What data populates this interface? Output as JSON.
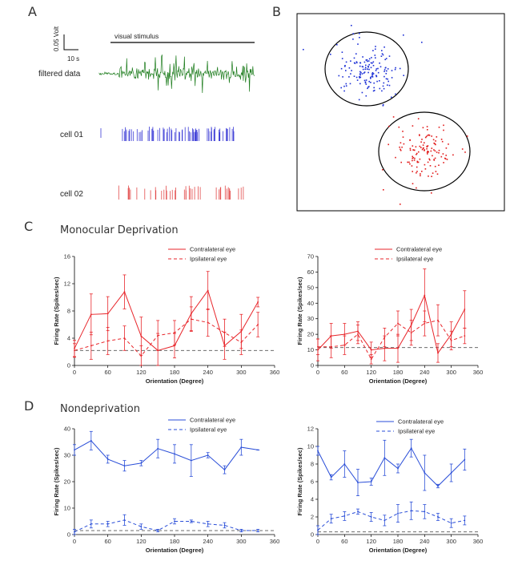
{
  "panels": {
    "A": {
      "letter": "A",
      "scalebar_v": "0.05 Volt",
      "scalebar_h": "10 s",
      "stim_label": "visual stimulus",
      "row_filtered": "filtered data",
      "row_cell1": "cell 01",
      "row_cell2": "cell 02"
    },
    "B": {
      "letter": "B"
    },
    "C": {
      "letter": "C",
      "title": "Monocular Deprivation"
    },
    "D": {
      "letter": "D",
      "title": "Nondeprivation"
    }
  },
  "colors": {
    "red": "#e8262b",
    "blue": "#2a4ed8",
    "green": "#1e7d1e",
    "cell1": "#3b3bd6",
    "cell2": "#e24a4a",
    "dots_blue": "#1b2fd6",
    "dots_red": "#e21b1b"
  },
  "chart_data": [
    {
      "id": "C-left",
      "type": "line",
      "title": "",
      "xlabel": "Orientation (Degree)",
      "ylabel": "Firing Rate (Spikes/sec)",
      "xlim": [
        0,
        360
      ],
      "ylim": [
        0,
        16
      ],
      "xticks": [
        "0",
        "60",
        "120",
        "180",
        "240",
        "300",
        "360"
      ],
      "yticks": [
        "0",
        "4",
        "8",
        "12",
        "16"
      ],
      "baseline": 2.2,
      "legend": [
        "Contralateral eye",
        "Ipsilateral eye"
      ],
      "series": [
        {
          "name": "Contralateral eye",
          "style": "solid",
          "x": [
            0,
            30,
            60,
            90,
            120,
            150,
            180,
            210,
            240,
            270,
            300,
            330
          ],
          "y": [
            2.5,
            7.5,
            7.6,
            10.8,
            4.3,
            2.2,
            2.9,
            7.6,
            11.0,
            2.9,
            5.0,
            9.3
          ],
          "err": [
            1.2,
            3.0,
            2.5,
            2.5,
            2.8,
            2.5,
            1.8,
            2.5,
            2.8,
            2.0,
            2.5,
            0.7
          ]
        },
        {
          "name": "Ipsilateral eye",
          "style": "dashed",
          "x": [
            0,
            30,
            60,
            90,
            120,
            150,
            180,
            210,
            240,
            270,
            300,
            330
          ],
          "y": [
            2.2,
            2.9,
            3.6,
            4.0,
            1.4,
            4.4,
            4.8,
            6.8,
            6.3,
            4.8,
            3.4,
            6.0
          ],
          "err": [
            1.0,
            2.0,
            2.0,
            1.8,
            1.5,
            2.2,
            1.8,
            1.8,
            2.0,
            2.0,
            1.8,
            1.8
          ]
        }
      ]
    },
    {
      "id": "C-right",
      "type": "line",
      "title": "",
      "xlabel": "Orientation (Degree)",
      "ylabel": "Firing Rate (Spikes/sec)",
      "xlim": [
        0,
        360
      ],
      "ylim": [
        0,
        70
      ],
      "xticks": [
        "0",
        "60",
        "120",
        "180",
        "240",
        "300",
        "360"
      ],
      "yticks": [
        "0",
        "10",
        "20",
        "30",
        "40",
        "50",
        "60",
        "70"
      ],
      "baseline": 11.5,
      "legend": [
        "Contralateral eye",
        "Ipsilateral eye"
      ],
      "series": [
        {
          "name": "Contralateral eye",
          "style": "solid",
          "x": [
            0,
            30,
            60,
            90,
            120,
            150,
            180,
            210,
            240,
            270,
            300,
            330
          ],
          "y": [
            10,
            19,
            20,
            22,
            10,
            11,
            11,
            26,
            45,
            8,
            20,
            36
          ],
          "err": [
            7,
            8,
            7,
            6,
            5,
            8,
            9,
            10,
            17,
            6,
            8,
            12
          ]
        },
        {
          "name": "Ipsilateral eye",
          "style": "dashed",
          "x": [
            0,
            30,
            60,
            90,
            120,
            150,
            180,
            210,
            240,
            270,
            300,
            330
          ],
          "y": [
            12,
            12,
            13,
            20,
            4,
            18,
            27,
            21,
            27,
            29,
            16,
            19
          ],
          "err": [
            5,
            7,
            6,
            6,
            3,
            6,
            8,
            8,
            8,
            10,
            6,
            5
          ]
        }
      ]
    },
    {
      "id": "D-left",
      "type": "line",
      "title": "",
      "xlabel": "Orientation (Degree)",
      "ylabel": "Firing Rate (Spikes/sec)",
      "xlim": [
        0,
        360
      ],
      "ylim": [
        0,
        40
      ],
      "xticks": [
        "0",
        "60",
        "120",
        "180",
        "240",
        "300",
        "360"
      ],
      "yticks": [
        "0",
        "10",
        "20",
        "30",
        "40"
      ],
      "baseline": 1.5,
      "legend": [
        "Contralateral eye",
        "Ipsilateral eye"
      ],
      "series": [
        {
          "name": "Contralateral eye",
          "style": "solid",
          "x": [
            0,
            30,
            60,
            90,
            120,
            150,
            180,
            210,
            240,
            270,
            300,
            330
          ],
          "y": [
            32,
            35.5,
            28.5,
            26,
            27,
            32.5,
            30.5,
            28,
            30,
            24.5,
            33,
            32
          ],
          "err": [
            2,
            3.5,
            1.5,
            2,
            1,
            3.5,
            3.5,
            6,
            1,
            1.5,
            3,
            0
          ]
        },
        {
          "name": "Ipsilateral eye",
          "style": "dashed",
          "x": [
            0,
            30,
            60,
            90,
            120,
            150,
            180,
            210,
            240,
            270,
            300,
            330
          ],
          "y": [
            1,
            4,
            4,
            5.5,
            3,
            1.5,
            5,
            5,
            4,
            3.5,
            1.5,
            1.5
          ],
          "err": [
            1,
            1.5,
            1,
            2,
            1,
            0.5,
            1,
            0.5,
            1,
            1,
            0.5,
            0.5
          ]
        }
      ]
    },
    {
      "id": "D-right",
      "type": "line",
      "title": "",
      "xlabel": "Orientation (Degree)",
      "ylabel": "Firing Rate (Spikes/sec)",
      "xlim": [
        0,
        360
      ],
      "ylim": [
        0,
        12
      ],
      "xticks": [
        "0",
        "60",
        "120",
        "180",
        "240",
        "300",
        "360"
      ],
      "yticks": [
        "0",
        "2",
        "4",
        "6",
        "8",
        "10",
        "12"
      ],
      "baseline": 0.3,
      "legend": [
        "Contralateral eye",
        "Ipsilateral eye"
      ],
      "series": [
        {
          "name": "Contralateral eye",
          "style": "solid",
          "x": [
            0,
            30,
            60,
            90,
            120,
            150,
            180,
            210,
            240,
            270,
            300,
            330
          ],
          "y": [
            9.5,
            6.5,
            8,
            5.9,
            6,
            8.7,
            7.5,
            9.8,
            7,
            5.5,
            7,
            8.5
          ],
          "err": [
            0.5,
            0.3,
            1.5,
            1.5,
            0.4,
            2,
            0.5,
            1,
            2,
            0.2,
            1,
            1.2
          ]
        },
        {
          "name": "Ipsilateral eye",
          "style": "dashed",
          "x": [
            0,
            30,
            60,
            90,
            120,
            150,
            180,
            210,
            240,
            270,
            300,
            330
          ],
          "y": [
            0.5,
            1.8,
            2.1,
            2.6,
            2,
            1.6,
            2.4,
            2.7,
            2.6,
            2,
            1.3,
            1.6
          ],
          "err": [
            0.5,
            0.5,
            0.5,
            0.3,
            0.5,
            0.6,
            1,
            1,
            0.8,
            0.4,
            0.5,
            0.5
          ]
        }
      ]
    }
  ]
}
